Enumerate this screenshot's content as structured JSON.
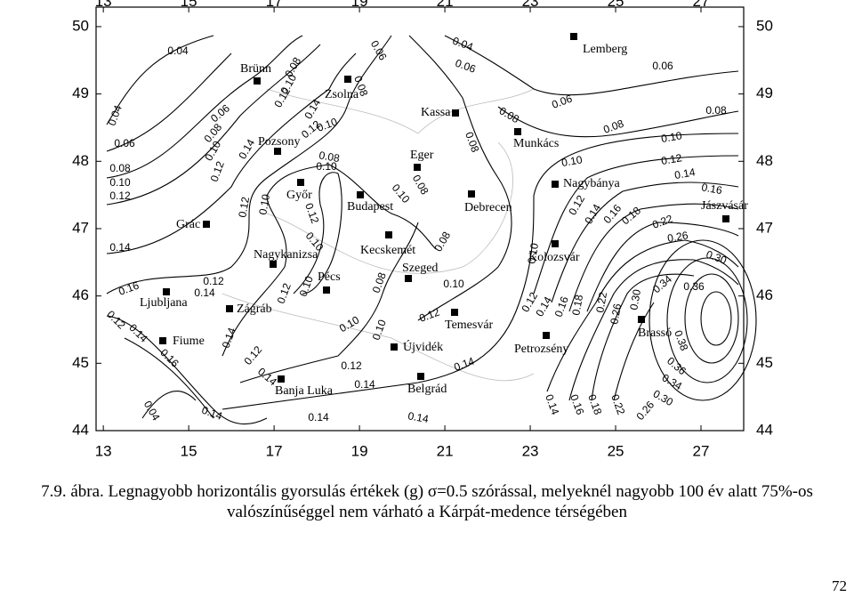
{
  "map": {
    "xlim": [
      12.83,
      28
    ],
    "ylim": [
      44,
      50.29
    ],
    "xticks": [
      13,
      15,
      17,
      19,
      21,
      23,
      25,
      27
    ],
    "yticks": [
      44,
      45,
      46,
      47,
      48,
      49,
      50
    ],
    "cities": [
      "Lemberg",
      "Brünn",
      "Zsolna",
      "Pozsony",
      "Kassa",
      "Munkács",
      "Eger",
      "Győr",
      "Budapest",
      "Debrecen",
      "Nagybánya",
      "Jászvásár",
      "Grác",
      "Kecskemét",
      "Kolozsvár",
      "Nagykanizsa",
      "Szeged",
      "Pécs",
      "Ljubljana",
      "Zágráb",
      "Temesvár",
      "Brassó",
      "Petrozsény",
      "Fiume",
      "Újvidék",
      "Belgrád",
      "Banja Luka"
    ],
    "contour_labels": [
      "0.04",
      "0.04",
      "0.06",
      "0.08",
      "0.10",
      "0.12",
      "0.14",
      "0.16",
      "0.12",
      "0.14",
      "0.12",
      "0.14",
      "0.16",
      "0.04",
      "0.14",
      "0.14",
      "0.14",
      "0.14",
      "0.12",
      "0.14",
      "0.12",
      "0.14",
      "0.12",
      "0.10",
      "0.12",
      "0.10",
      "0.12",
      "0.10",
      "0.08",
      "0.10",
      "0.10",
      "0.06",
      "0.08",
      "0.08",
      "0.10",
      "0.12",
      "0.14",
      "0.12",
      "0.10",
      "0.08",
      "0.10",
      "0.10",
      "0.08",
      "0.06",
      "0.08",
      "0.10",
      "0.12",
      "0.14",
      "0.04",
      "0.06",
      "0.08",
      "0.08",
      "0.08",
      "0.10",
      "0.12",
      "0.14",
      "0.06",
      "0.08",
      "0.10",
      "0.06",
      "0.08",
      "0.10",
      "0.12",
      "0.14",
      "0.16",
      "0.12",
      "0.14",
      "0.16",
      "0.18",
      "0.22",
      "0.26",
      "0.30",
      "0.34",
      "0.36",
      "0.38",
      "0.36",
      "0.34",
      "0.30",
      "0.10",
      "0.12",
      "0.14",
      "0.16",
      "0.18",
      "0.22",
      "0.26",
      "0.30",
      "0.14",
      "0.16",
      "0.18",
      "0.22",
      "0.26"
    ]
  },
  "caption": {
    "lines": [
      "7.9. ábra. Legnagyobb horizontális gyorsulás értékek (g) σ=0.5 szórással, melyeknél nagyobb 100 év alatt 75%-os",
      "valószínűséggel nem várható a Kárpát-medence térségében"
    ]
  },
  "page_number": "72"
}
